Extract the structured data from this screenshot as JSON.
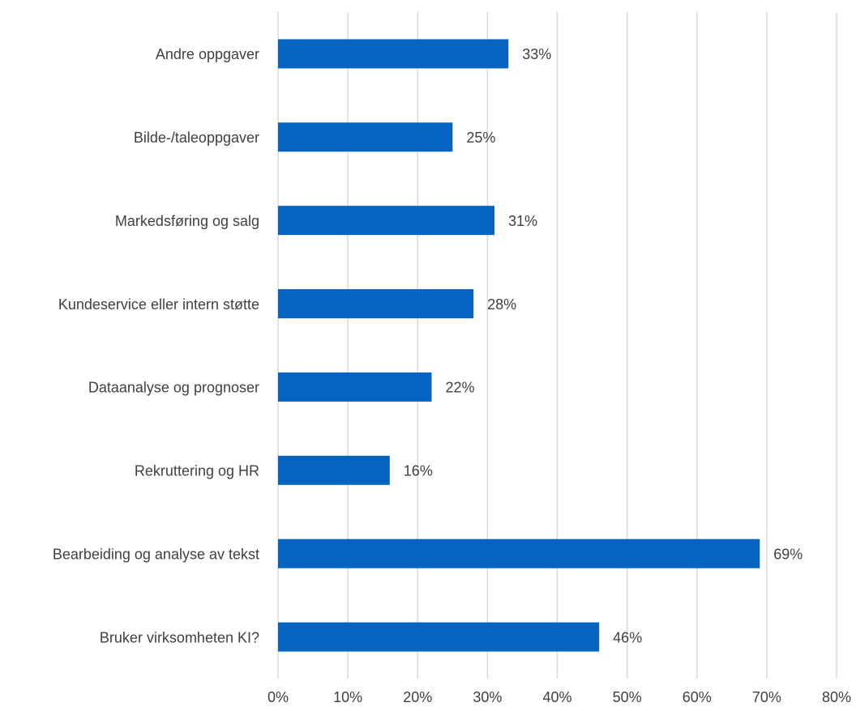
{
  "chart_data": {
    "type": "hbar",
    "categories": [
      "Andre oppgaver",
      "Bilde-/taleoppgaver",
      "Markedsføring og salg",
      "Kundeservice eller intern støtte",
      "Dataanalyse og prognoser",
      "Rekruttering og HR",
      "Bearbeiding og analyse av tekst",
      "Bruker virksomheten KI?"
    ],
    "values": [
      33,
      25,
      31,
      28,
      22,
      16,
      69,
      46
    ],
    "value_labels": [
      "33%",
      "25%",
      "31%",
      "28%",
      "22%",
      "16%",
      "69%",
      "46%"
    ],
    "color": "#0563c1",
    "xlim": [
      0,
      80
    ],
    "xticks": [
      {
        "value": 0,
        "label": "0%"
      },
      {
        "value": 10,
        "label": "10%"
      },
      {
        "value": 20,
        "label": "20%"
      },
      {
        "value": 30,
        "label": "30%"
      },
      {
        "value": 40,
        "label": "40%"
      },
      {
        "value": 50,
        "label": "50%"
      },
      {
        "value": 60,
        "label": "60%"
      },
      {
        "value": 70,
        "label": "70%"
      },
      {
        "value": 80,
        "label": "80%"
      }
    ],
    "grid": true
  }
}
